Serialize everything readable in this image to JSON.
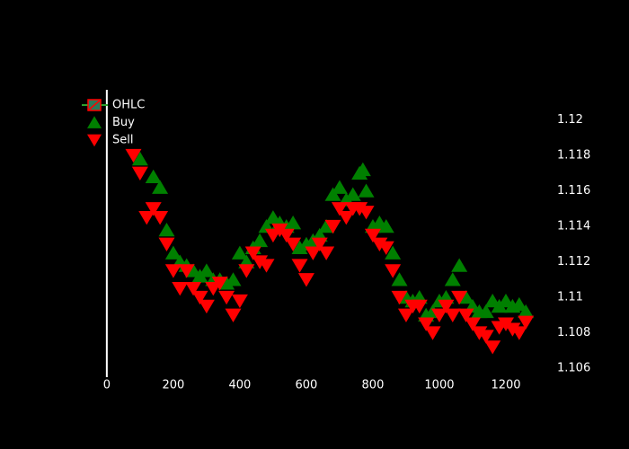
{
  "chart_data": {
    "type": "scatter",
    "xlim": [
      -105,
      1300
    ],
    "ylim": [
      1.1055,
      1.1217
    ],
    "xticks": [
      0,
      200,
      400,
      600,
      800,
      1000,
      1200
    ],
    "yticks": [
      1.106,
      1.108,
      1.11,
      1.112,
      1.114,
      1.116,
      1.118,
      1.12
    ],
    "zeroline": true,
    "legend": "top-left",
    "series": [
      {
        "name": "OHLC",
        "color": "#ff0000"
      },
      {
        "name": "Buy",
        "color": "#008000",
        "marker": "triangle-up",
        "x": [
          100,
          140,
          160,
          180,
          200,
          220,
          240,
          260,
          280,
          300,
          320,
          340,
          360,
          380,
          400,
          420,
          440,
          460,
          480,
          500,
          520,
          540,
          560,
          580,
          600,
          620,
          640,
          660,
          680,
          700,
          720,
          740,
          760,
          770,
          780,
          800,
          820,
          840,
          860,
          880,
          900,
          920,
          940,
          960,
          980,
          1000,
          1020,
          1040,
          1060,
          1080,
          1100,
          1120,
          1140,
          1160,
          1180,
          1200,
          1220,
          1240,
          1260
        ],
        "values": [
          1.1178,
          1.1168,
          1.1162,
          1.1138,
          1.1125,
          1.112,
          1.1118,
          1.1115,
          1.1112,
          1.1115,
          1.111,
          1.111,
          1.1108,
          1.111,
          1.1125,
          1.112,
          1.1128,
          1.1132,
          1.114,
          1.1145,
          1.1142,
          1.114,
          1.1142,
          1.1128,
          1.113,
          1.1132,
          1.1135,
          1.114,
          1.1158,
          1.1162,
          1.1155,
          1.1158,
          1.117,
          1.1172,
          1.116,
          1.114,
          1.1142,
          1.114,
          1.1125,
          1.111,
          1.11,
          1.1098,
          1.11,
          1.109,
          1.1092,
          1.1098,
          1.11,
          1.111,
          1.1118,
          1.11,
          1.1095,
          1.1092,
          1.1092,
          1.1098,
          1.1095,
          1.1098,
          1.1095,
          1.1096,
          1.1092
        ]
      },
      {
        "name": "Sell",
        "color": "#ff0000",
        "marker": "triangle-down",
        "x": [
          80,
          100,
          120,
          140,
          160,
          180,
          200,
          220,
          240,
          260,
          280,
          300,
          320,
          340,
          360,
          380,
          400,
          420,
          440,
          460,
          480,
          500,
          520,
          540,
          560,
          580,
          600,
          620,
          640,
          660,
          680,
          700,
          720,
          740,
          760,
          780,
          800,
          820,
          840,
          860,
          880,
          900,
          920,
          940,
          960,
          980,
          1000,
          1020,
          1040,
          1060,
          1080,
          1100,
          1120,
          1140,
          1160,
          1180,
          1200,
          1220,
          1240,
          1260
        ],
        "values": [
          1.118,
          1.117,
          1.1145,
          1.115,
          1.1145,
          1.113,
          1.1115,
          1.1105,
          1.1115,
          1.1105,
          1.11,
          1.1095,
          1.1105,
          1.1108,
          1.11,
          1.109,
          1.1098,
          1.1115,
          1.1125,
          1.112,
          1.1118,
          1.1135,
          1.1138,
          1.1135,
          1.113,
          1.1118,
          1.111,
          1.1125,
          1.113,
          1.1125,
          1.114,
          1.115,
          1.1145,
          1.115,
          1.115,
          1.1148,
          1.1135,
          1.113,
          1.1128,
          1.1115,
          1.11,
          1.109,
          1.1095,
          1.1095,
          1.1085,
          1.108,
          1.109,
          1.1095,
          1.109,
          1.11,
          1.109,
          1.1085,
          1.108,
          1.1078,
          1.1072,
          1.1083,
          1.1085,
          1.1082,
          1.108,
          1.1086
        ]
      }
    ]
  }
}
